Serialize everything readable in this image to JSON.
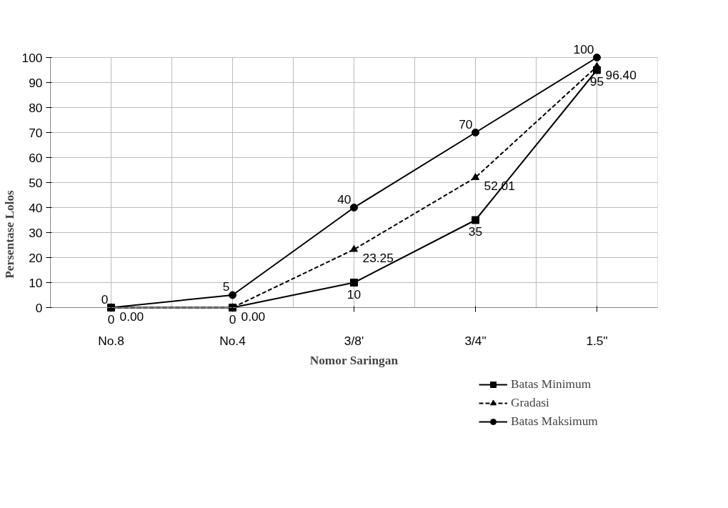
{
  "chart_data": {
    "type": "line",
    "xlabel": "Nomor Saringan",
    "ylabel": "Persentase Lolos",
    "categories": [
      "No.8",
      "No.4",
      "3/8'",
      "3/4\"",
      "1.5\""
    ],
    "ylim": [
      0,
      100
    ],
    "yticks": [
      0,
      10,
      20,
      30,
      40,
      50,
      60,
      70,
      80,
      90,
      100
    ],
    "grid": true,
    "legend": "bottom right",
    "series": [
      {
        "name": "Batas Minimum",
        "color": "#000000",
        "marker": "square",
        "line_style": "solid",
        "values": [
          0,
          0,
          10,
          35,
          95
        ],
        "value_labels": [
          "0",
          "0",
          "10",
          "35",
          "95"
        ]
      },
      {
        "name": "Gradasi",
        "color": "#000000",
        "marker": "triangle",
        "line_style": "dashed",
        "values": [
          0,
          0,
          23.25,
          52.01,
          96.4
        ],
        "value_labels": [
          "0.00",
          "0.00",
          "23.25",
          "52.01",
          "96.40"
        ]
      },
      {
        "name": "Batas Maksimum",
        "color": "#000000",
        "marker": "circle",
        "line_style": "solid",
        "values": [
          0,
          5,
          40,
          70,
          100
        ],
        "value_labels": [
          "0",
          "5",
          "40",
          "70",
          "100"
        ]
      }
    ]
  }
}
